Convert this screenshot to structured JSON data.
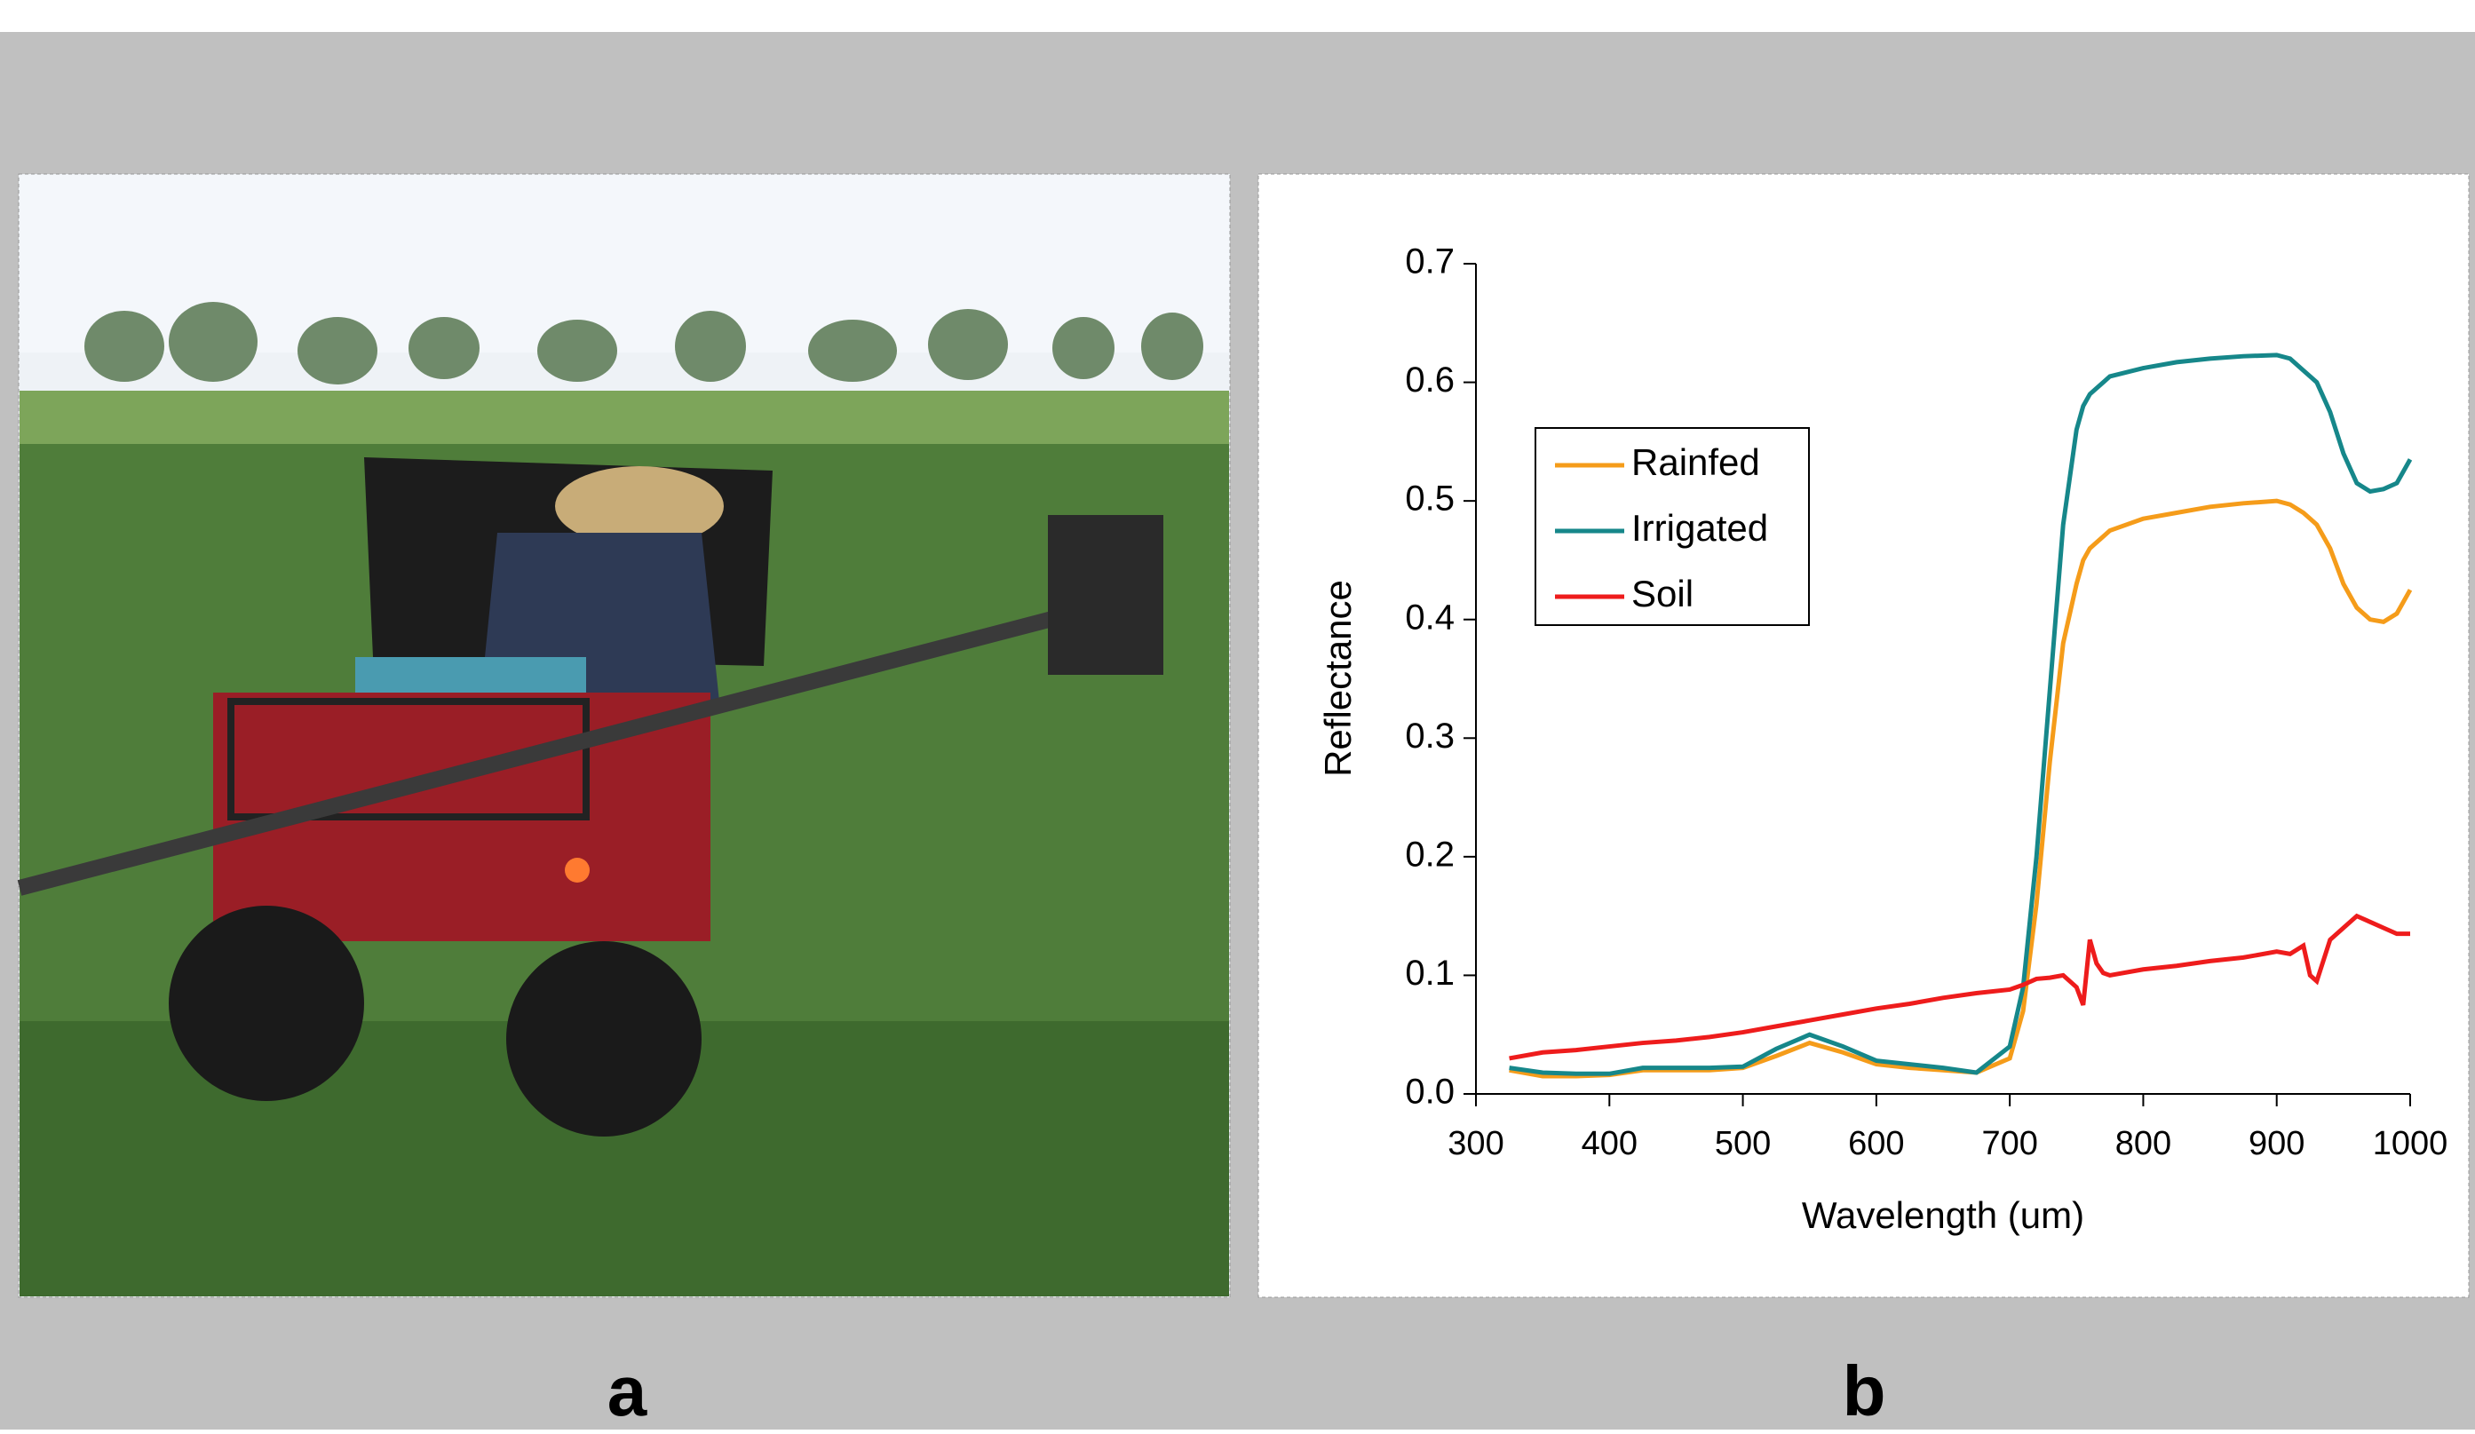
{
  "panel_labels": [
    "a",
    "b"
  ],
  "chart_data": {
    "type": "line",
    "x_label": "Wavelength (um)",
    "y_label": "Reflectance",
    "x": [
      325,
      350,
      375,
      400,
      425,
      450,
      475,
      500,
      525,
      550,
      575,
      600,
      625,
      650,
      675,
      700,
      710,
      720,
      730,
      740,
      750,
      755,
      760,
      765,
      770,
      775,
      800,
      825,
      850,
      875,
      900,
      910,
      920,
      925,
      930,
      940,
      950,
      960,
      970,
      980,
      990,
      1000
    ],
    "series": [
      {
        "name": "Rainfed",
        "color": "#f59c1a",
        "values": [
          0.02,
          0.015,
          0.015,
          0.016,
          0.02,
          0.02,
          0.02,
          0.022,
          0.032,
          0.043,
          0.035,
          0.025,
          0.022,
          0.02,
          0.018,
          0.03,
          0.07,
          0.16,
          0.28,
          0.38,
          0.43,
          0.45,
          0.46,
          0.465,
          0.47,
          0.475,
          0.485,
          0.49,
          0.495,
          0.498,
          0.5,
          0.497,
          0.49,
          0.485,
          0.48,
          0.46,
          0.43,
          0.41,
          0.4,
          0.398,
          0.405,
          0.425
        ]
      },
      {
        "name": "Irrigated",
        "color": "#16878a",
        "values": [
          0.022,
          0.018,
          0.017,
          0.017,
          0.022,
          0.022,
          0.022,
          0.023,
          0.038,
          0.05,
          0.04,
          0.028,
          0.025,
          0.022,
          0.018,
          0.04,
          0.09,
          0.2,
          0.34,
          0.48,
          0.56,
          0.58,
          0.59,
          0.595,
          0.6,
          0.605,
          0.612,
          0.617,
          0.62,
          0.622,
          0.623,
          0.62,
          0.61,
          0.605,
          0.6,
          0.575,
          0.54,
          0.515,
          0.508,
          0.51,
          0.515,
          0.535
        ]
      },
      {
        "name": "Soil",
        "color": "#ee1c1c",
        "values": [
          0.03,
          0.035,
          0.037,
          0.04,
          0.043,
          0.045,
          0.048,
          0.052,
          0.057,
          0.062,
          0.067,
          0.072,
          0.076,
          0.081,
          0.085,
          0.088,
          0.092,
          0.097,
          0.098,
          0.1,
          0.09,
          0.075,
          0.13,
          0.11,
          0.102,
          0.1,
          0.105,
          0.108,
          0.112,
          0.115,
          0.12,
          0.118,
          0.125,
          0.1,
          0.095,
          0.13,
          0.14,
          0.15,
          0.145,
          0.14,
          0.135,
          0.135
        ]
      }
    ],
    "xlim": [
      300,
      1000
    ],
    "xticks": [
      300,
      400,
      500,
      600,
      700,
      800,
      900,
      1000
    ],
    "ylim": [
      0,
      0.7
    ],
    "yticks": [
      {
        "value": 0,
        "label": "0.0"
      },
      0.1,
      0.2,
      0.3,
      0.4,
      0.5,
      0.6,
      0.7
    ],
    "legend_position": "upper left"
  }
}
